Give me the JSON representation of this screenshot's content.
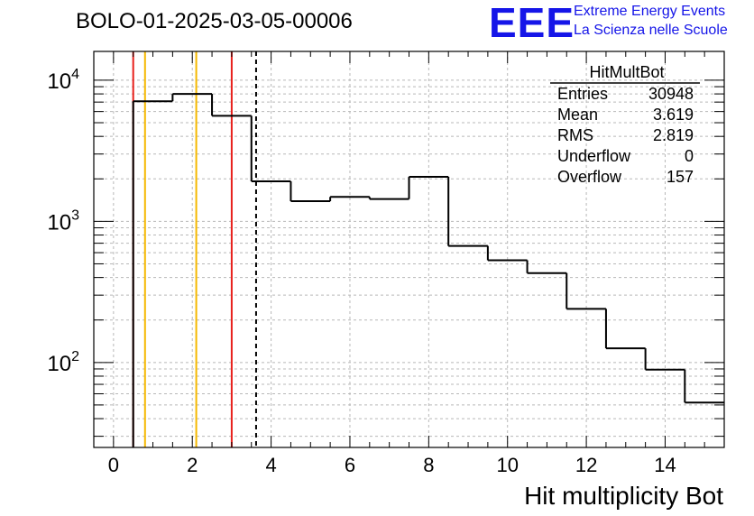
{
  "header": {
    "run_title": "BOLO-01-2025-03-05-00006",
    "logo_mark": "EEE",
    "logo_line1": "Extreme Energy Events",
    "logo_line2": "La Scienza nelle Scuole"
  },
  "colors": {
    "histogram": "#000000",
    "red_marker": "#e8201c",
    "yellow_marker": "#f5b800",
    "grid": "#b8b8b8",
    "logo": "#1515e8"
  },
  "stats_box": {
    "name": "HitMultBot",
    "rows": [
      {
        "label": "Entries",
        "value": "30948"
      },
      {
        "label": "Mean",
        "value": "3.619"
      },
      {
        "label": "RMS",
        "value": "2.819"
      },
      {
        "label": "Underflow",
        "value": "0"
      },
      {
        "label": "Overflow",
        "value": "157"
      }
    ]
  },
  "chart_data": {
    "type": "bar",
    "style": "step-histogram",
    "title": "BOLO-01-2025-03-05-00006",
    "xlabel": "Hit multiplicity Bot",
    "ylabel": "",
    "x_log": false,
    "y_log": true,
    "xlim": [
      -0.5,
      15.5
    ],
    "ylim": [
      25,
      16000
    ],
    "grid": true,
    "bin_edges": [
      0.5,
      1.5,
      2.5,
      3.5,
      4.5,
      5.5,
      6.5,
      7.5,
      8.5,
      9.5,
      10.5,
      11.5,
      12.5,
      13.5,
      14.5,
      15.5
    ],
    "categories": [
      "1",
      "2",
      "3",
      "4",
      "5",
      "6",
      "7",
      "8",
      "9",
      "10",
      "11",
      "12",
      "13",
      "14",
      "15"
    ],
    "values": [
      7100,
      8000,
      5600,
      1920,
      1390,
      1490,
      1440,
      2070,
      670,
      530,
      430,
      240,
      126,
      89,
      52
    ],
    "x_ticks": [
      {
        "value": 0,
        "label": "0"
      },
      {
        "value": 2,
        "label": "2"
      },
      {
        "value": 4,
        "label": "4"
      },
      {
        "value": 6,
        "label": "6"
      },
      {
        "value": 8,
        "label": "8"
      },
      {
        "value": 10,
        "label": "10"
      },
      {
        "value": 12,
        "label": "12"
      },
      {
        "value": 14,
        "label": "14"
      }
    ],
    "y_ticks": [
      {
        "value": 100,
        "base": "10",
        "exp": "2"
      },
      {
        "value": 1000,
        "base": "10",
        "exp": "3"
      },
      {
        "value": 10000,
        "base": "10",
        "exp": "4"
      }
    ],
    "vertical_markers": [
      {
        "x": 0.5,
        "color": "red",
        "style": "solid"
      },
      {
        "x": 0.8,
        "color": "yellow",
        "style": "solid"
      },
      {
        "x": 2.1,
        "color": "yellow",
        "style": "solid"
      },
      {
        "x": 3.0,
        "color": "red",
        "style": "solid"
      },
      {
        "x": 3.619,
        "color": "black",
        "style": "dashed"
      }
    ]
  }
}
